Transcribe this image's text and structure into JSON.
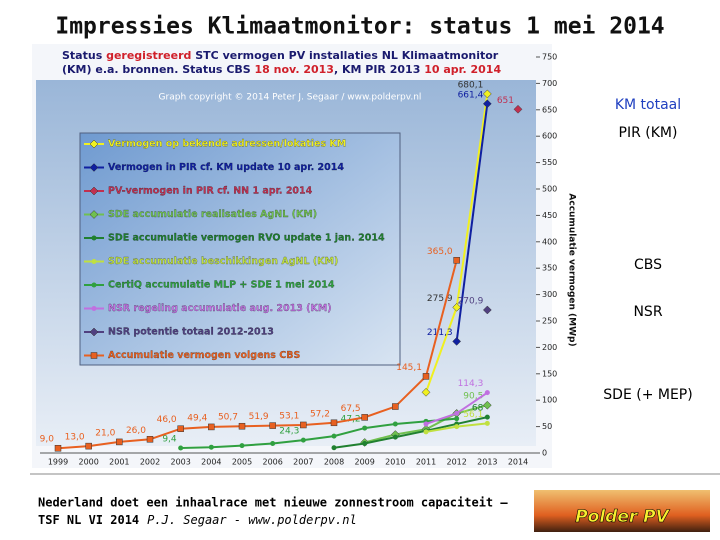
{
  "chart_data": {
    "type": "line",
    "title": "Impressies Klimaatmonitor: status 1 mei 2014",
    "subtitle_lines": [
      [
        {
          "text": "Status ",
          "color": "#1a1a6e"
        },
        {
          "text": "geregistreerd",
          "color": "#d0202a"
        },
        {
          "text": " STC vermogen PV installaties  NL Klimaatmonitor",
          "color": "#1a1a6e"
        }
      ],
      [
        {
          "text": "(KM) e.a. bronnen. Status CBS ",
          "color": "#1a1a6e"
        },
        {
          "text": "18 nov. 2013",
          "color": "#d0202a"
        },
        {
          "text": ", KM PIR 2013 ",
          "color": "#1a1a6e"
        },
        {
          "text": "10 apr. 2014",
          "color": "#d0202a"
        }
      ]
    ],
    "copyright": "Graph copyright © 2014 Peter J. Segaar / www.polderpv.nl",
    "ylabel": "Accumulatie vermogen (MWp)",
    "categories": [
      "1999",
      "2000",
      "2001",
      "2002",
      "2003",
      "2004",
      "2005",
      "2006",
      "2007",
      "2008",
      "2009",
      "2010",
      "2011",
      "2012",
      "2013",
      "2014"
    ],
    "ylim": [
      0,
      750
    ],
    "yticks": [
      0,
      50,
      100,
      150,
      200,
      250,
      300,
      350,
      400,
      450,
      500,
      550,
      600,
      650,
      700,
      750
    ],
    "grid": false,
    "series": [
      {
        "name": "Vermogen op bekende adressen/lokaties KM",
        "color": "#f0f020",
        "marker": "diamond",
        "values": [
          null,
          null,
          null,
          null,
          null,
          null,
          null,
          null,
          null,
          null,
          null,
          null,
          115,
          275.9,
          680.1,
          null
        ],
        "value_labels": [
          null,
          null,
          null,
          null,
          null,
          null,
          null,
          null,
          null,
          null,
          null,
          null,
          null,
          "275,9",
          "680,1",
          null
        ]
      },
      {
        "name": "Vermogen in PIR cf. KM update 10 apr. 2014",
        "color": "#1020a0",
        "marker": "diamond",
        "values": [
          null,
          null,
          null,
          null,
          null,
          null,
          null,
          null,
          null,
          null,
          null,
          null,
          null,
          211.3,
          661.4,
          null
        ],
        "value_labels": [
          null,
          null,
          null,
          null,
          null,
          null,
          null,
          null,
          null,
          null,
          null,
          null,
          null,
          "211,3",
          "661,4",
          null
        ]
      },
      {
        "name": "PV-vermogen in PIR cf. NN 1 apr. 2014",
        "color": "#c03050",
        "marker": "diamond",
        "values": [
          null,
          null,
          null,
          null,
          null,
          null,
          null,
          null,
          null,
          null,
          null,
          null,
          null,
          null,
          null,
          651
        ],
        "value_labels": [
          null,
          null,
          null,
          null,
          null,
          null,
          null,
          null,
          null,
          null,
          null,
          null,
          null,
          null,
          null,
          "651"
        ]
      },
      {
        "name": "SDE accumulatie realisaties AgNL (KM)",
        "color": "#70c050",
        "marker": "diamond",
        "values": [
          null,
          null,
          null,
          null,
          null,
          null,
          null,
          null,
          null,
          null,
          20,
          35,
          45,
          75,
          90.5,
          null
        ],
        "value_labels": [
          null,
          null,
          null,
          null,
          null,
          null,
          null,
          null,
          null,
          null,
          null,
          null,
          null,
          null,
          "90,5",
          null
        ]
      },
      {
        "name": "SDE accumulatie vermogen RVO update 1 jan. 2014",
        "color": "#208030",
        "marker": "circle",
        "values": [
          null,
          null,
          null,
          null,
          null,
          null,
          null,
          null,
          null,
          10,
          18,
          30,
          42,
          55,
          68,
          null
        ],
        "value_labels": [
          null,
          null,
          null,
          null,
          null,
          null,
          null,
          null,
          null,
          null,
          null,
          null,
          null,
          null,
          "68",
          null
        ]
      },
      {
        "name": "SDE accumulatie beschikkingen AgNL (KM)",
        "color": "#c0e040",
        "marker": "circle",
        "values": [
          null,
          null,
          null,
          null,
          null,
          null,
          null,
          null,
          null,
          null,
          null,
          null,
          40,
          50,
          56.1,
          null
        ],
        "value_labels": [
          null,
          null,
          null,
          null,
          null,
          null,
          null,
          null,
          null,
          null,
          null,
          null,
          null,
          null,
          "56,1",
          null
        ]
      },
      {
        "name": "CertiQ accumulatie MLP + SDE 1 mei 2014",
        "color": "#30a040",
        "marker": "circle",
        "values": [
          null,
          null,
          null,
          null,
          9.4,
          11,
          14,
          18,
          24.3,
          32,
          47.2,
          55,
          60,
          65,
          null,
          null
        ],
        "value_labels": [
          null,
          null,
          null,
          null,
          "9,4",
          null,
          null,
          null,
          "24,3",
          null,
          "47,2",
          null,
          null,
          null,
          null,
          null
        ]
      },
      {
        "name": "NSR regeling accumulatie aug. 2013 (KM)",
        "color": "#c070e0",
        "marker": "circle",
        "values": [
          null,
          null,
          null,
          null,
          null,
          null,
          null,
          null,
          null,
          null,
          null,
          null,
          55,
          75,
          114.3,
          null
        ],
        "value_labels": [
          null,
          null,
          null,
          null,
          null,
          null,
          null,
          null,
          null,
          null,
          null,
          null,
          null,
          null,
          "114,3",
          null
        ]
      },
      {
        "name": "NSR potentie totaal 2012-2013",
        "color": "#504080",
        "marker": "diamond",
        "values": [
          null,
          null,
          null,
          null,
          null,
          null,
          null,
          null,
          null,
          null,
          null,
          null,
          null,
          null,
          270.9,
          null
        ],
        "value_labels": [
          null,
          null,
          null,
          null,
          null,
          null,
          null,
          null,
          null,
          null,
          null,
          null,
          null,
          null,
          "270,9",
          null
        ]
      },
      {
        "name": "Accumulatie vermogen volgens CBS",
        "color": "#e86020",
        "marker": "square",
        "values": [
          9.0,
          13.0,
          21.0,
          26.0,
          46.0,
          49.4,
          50.7,
          51.9,
          53.1,
          57.2,
          67.5,
          88,
          145.1,
          365.0,
          null,
          null
        ],
        "value_labels": [
          "9,0",
          "13,0",
          "21,0",
          "26,0",
          "46,0",
          "49,4",
          "50,7",
          "51,9",
          "53,1",
          "57,2",
          "67,5",
          null,
          "145,1",
          "365,0",
          null,
          null
        ]
      }
    ],
    "side_labels": [
      {
        "text": "KM  totaal",
        "color": "#2040c0"
      },
      {
        "text": "PIR (KM)",
        "color": "#000000"
      },
      {
        "text": "CBS",
        "color": "#000000"
      },
      {
        "text": "NSR",
        "color": "#000000"
      },
      {
        "text": "SDE (+ MEP)",
        "color": "#000000"
      }
    ],
    "footer_line1": "Nederland doet een inhaalrace met nieuwe zonnestroom capaciteit –",
    "footer_line2": "TSF NL VI 2014",
    "footer_author": "P.J. Segaar  - www.polderpv.nl",
    "logo": "Polder PV"
  }
}
